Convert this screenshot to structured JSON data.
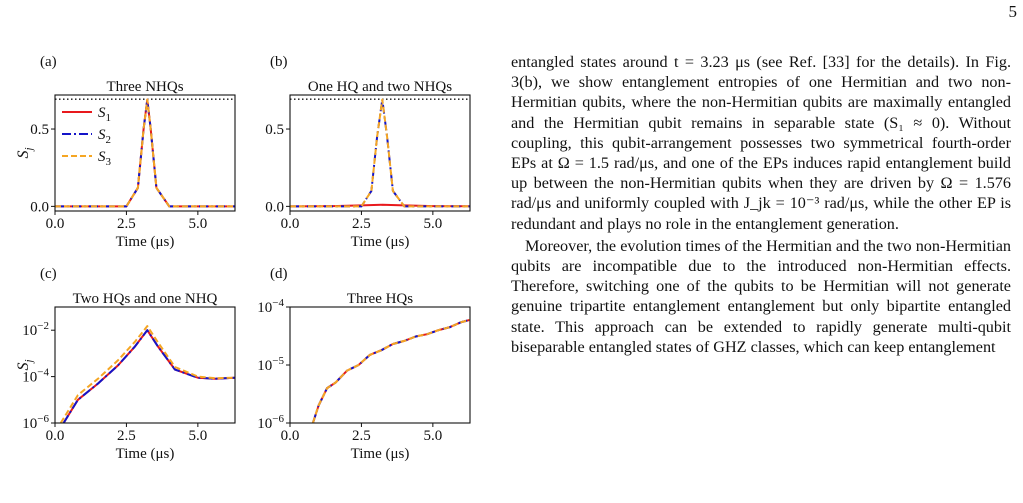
{
  "page_number": "5",
  "panels": [
    {
      "label": "(a)",
      "title": "Three NHQs"
    },
    {
      "label": "(b)",
      "title": "One HQ and two NHQs"
    },
    {
      "label": "(c)",
      "title": "Two HQs and one NHQ"
    },
    {
      "label": "(d)",
      "title": "Three HQs"
    }
  ],
  "legend": [
    "S1",
    "S2",
    "S3"
  ],
  "axis": {
    "xlabel": "Time (μs)",
    "ylabel": "S_j"
  },
  "colors": {
    "S1": "#e8191d",
    "S2": "#1414c8",
    "S3": "#f5a623"
  },
  "chart_data": [
    {
      "type": "line",
      "title": "Three NHQs",
      "xlabel": "Time (μs)",
      "ylabel": "S_j",
      "xlim": [
        0,
        6.3
      ],
      "ylim": [
        -0.03,
        0.72
      ],
      "xticks": [
        "0.0",
        "2.5",
        "5.0"
      ],
      "yticks": [
        "0.0",
        "0.5"
      ],
      "reference_line": 0.693,
      "series": [
        {
          "name": "S1",
          "x": [
            0,
            2.5,
            2.9,
            3.1,
            3.23,
            3.35,
            3.55,
            4.0,
            6.3
          ],
          "y": [
            0,
            0.0,
            0.12,
            0.5,
            0.69,
            0.5,
            0.12,
            0.0,
            0
          ]
        },
        {
          "name": "S2",
          "x": [
            0,
            2.5,
            2.9,
            3.1,
            3.23,
            3.35,
            3.55,
            4.0,
            6.3
          ],
          "y": [
            0,
            0.0,
            0.12,
            0.5,
            0.69,
            0.5,
            0.12,
            0.0,
            0
          ]
        },
        {
          "name": "S3",
          "x": [
            0,
            2.5,
            2.9,
            3.1,
            3.23,
            3.35,
            3.55,
            4.0,
            6.3
          ],
          "y": [
            0,
            0.0,
            0.12,
            0.5,
            0.69,
            0.5,
            0.12,
            0.0,
            0
          ]
        }
      ]
    },
    {
      "type": "line",
      "title": "One HQ and two NHQs",
      "xlabel": "Time (μs)",
      "ylabel": "",
      "xlim": [
        0,
        6.3
      ],
      "ylim": [
        -0.03,
        0.72
      ],
      "xticks": [
        "0.0",
        "2.5",
        "5.0"
      ],
      "yticks": [
        "0.0",
        "0.5"
      ],
      "reference_line": 0.693,
      "series": [
        {
          "name": "S1",
          "x": [
            0,
            1.5,
            2.5,
            3.23,
            4.0,
            5.0,
            6.3
          ],
          "y": [
            0,
            0.002,
            0.006,
            0.01,
            0.006,
            0.002,
            0.001
          ]
        },
        {
          "name": "S2",
          "x": [
            0,
            2.5,
            2.85,
            3.05,
            3.23,
            3.4,
            3.6,
            4.0,
            6.3
          ],
          "y": [
            0,
            0.0,
            0.1,
            0.45,
            0.69,
            0.45,
            0.1,
            0.0,
            0
          ]
        },
        {
          "name": "S3",
          "x": [
            0,
            2.5,
            2.85,
            3.05,
            3.23,
            3.4,
            3.6,
            4.0,
            6.3
          ],
          "y": [
            0,
            0.0,
            0.1,
            0.45,
            0.69,
            0.45,
            0.1,
            0.0,
            0
          ]
        }
      ]
    },
    {
      "type": "line",
      "title": "Two HQs and one NHQ",
      "xlabel": "Time (μs)",
      "ylabel": "S_j",
      "yscale": "log",
      "xlim": [
        0,
        6.3
      ],
      "ylim": [
        1e-06,
        0.1
      ],
      "xticks": [
        "0.0",
        "2.5",
        "5.0"
      ],
      "yticks": [
        "10^-2",
        "10^-4",
        "10^-6"
      ],
      "series": [
        {
          "name": "S1",
          "x": [
            0.3,
            0.8,
            1.5,
            2.2,
            2.8,
            3.23,
            3.6,
            4.2,
            5.0,
            5.6,
            6.3
          ],
          "y": [
            1e-06,
            1e-05,
            5e-05,
            0.0003,
            0.002,
            0.01,
            0.002,
            0.0002,
            9e-05,
            8e-05,
            9e-05
          ]
        },
        {
          "name": "S2",
          "x": [
            0.3,
            0.8,
            1.5,
            2.2,
            2.8,
            3.23,
            3.6,
            4.2,
            5.0,
            5.6,
            6.3
          ],
          "y": [
            1e-06,
            1e-05,
            5e-05,
            0.0003,
            0.002,
            0.01,
            0.002,
            0.0002,
            9e-05,
            8e-05,
            9e-05
          ]
        },
        {
          "name": "S3",
          "x": [
            0.2,
            0.8,
            1.5,
            2.2,
            2.8,
            3.23,
            3.6,
            4.2,
            5.0,
            5.6,
            6.3
          ],
          "y": [
            1e-06,
            1.6e-05,
            8e-05,
            0.0005,
            0.0032,
            0.015,
            0.003,
            0.00026,
            0.0001,
            8.5e-05,
            9e-05
          ]
        }
      ]
    },
    {
      "type": "line",
      "title": "Three HQs",
      "xlabel": "Time (μs)",
      "ylabel": "",
      "yscale": "log",
      "xlim": [
        0,
        6.3
      ],
      "ylim": [
        1e-06,
        0.0001
      ],
      "xticks": [
        "0.0",
        "2.5",
        "5.0"
      ],
      "yticks": [
        "10^-4",
        "10^-5",
        "10^-6"
      ],
      "series": [
        {
          "name": "S1",
          "x": [
            0.8,
            1.0,
            1.3,
            1.6,
            2.0,
            2.4,
            2.8,
            3.2,
            3.6,
            4.0,
            4.4,
            4.8,
            5.2,
            5.6,
            6.0,
            6.3
          ],
          "y": [
            1e-06,
            2e-06,
            4e-06,
            5e-06,
            8e-06,
            1e-05,
            1.5e-05,
            1.8e-05,
            2.3e-05,
            2.6e-05,
            3.1e-05,
            3.4e-05,
            4e-05,
            4.5e-05,
            5.5e-05,
            6e-05
          ]
        },
        {
          "name": "S2",
          "x": [
            0.8,
            1.0,
            1.3,
            1.6,
            2.0,
            2.4,
            2.8,
            3.2,
            3.6,
            4.0,
            4.4,
            4.8,
            5.2,
            5.6,
            6.0,
            6.3
          ],
          "y": [
            1e-06,
            2e-06,
            4e-06,
            5e-06,
            8e-06,
            1e-05,
            1.5e-05,
            1.8e-05,
            2.3e-05,
            2.6e-05,
            3.1e-05,
            3.4e-05,
            4e-05,
            4.5e-05,
            5.5e-05,
            6e-05
          ]
        },
        {
          "name": "S3",
          "x": [
            0.8,
            1.0,
            1.3,
            1.6,
            2.0,
            2.4,
            2.8,
            3.2,
            3.6,
            4.0,
            4.4,
            4.8,
            5.2,
            5.6,
            6.0,
            6.3
          ],
          "y": [
            1e-06,
            2e-06,
            4e-06,
            5e-06,
            8e-06,
            1e-05,
            1.5e-05,
            1.8e-05,
            2.3e-05,
            2.6e-05,
            3.1e-05,
            3.4e-05,
            4e-05,
            4.5e-05,
            5.5e-05,
            6e-05
          ]
        }
      ]
    }
  ],
  "text": {
    "p1": "entangled states around t = 3.23 μs (see Ref. [33] for the details). In Fig. 3(b), we show entanglement entropies of one Hermitian and two non-Hermitian qubits, where the non-Hermitian qubits are maximally entangled and the Hermitian qubit remains in separable state (S₁ ≈ 0). Without coupling, this qubit-arrangement possesses two symmetrical fourth-order EPs at Ω = 1.5 rad/μs, and one of the EPs induces rapid entanglement build up between the non-Hermitian qubits when they are driven by Ω = 1.576 rad/μs and uniformly coupled with J_jk = 10⁻³ rad/μs, while the other EP is redundant and plays no role in the entanglement generation.",
    "p2": "Moreover, the evolution times of the Hermitian and the two non-Hermitian qubits are incompatible due to the introduced non-Hermitian effects. Therefore, switching one of the qubits to be Hermitian will not generate genuine tripartite entanglement entanglement but only bipartite entangled state. This approach can be extended to rapidly generate multi-qubit biseparable entangled states of GHZ classes, which can keep entanglement"
  }
}
